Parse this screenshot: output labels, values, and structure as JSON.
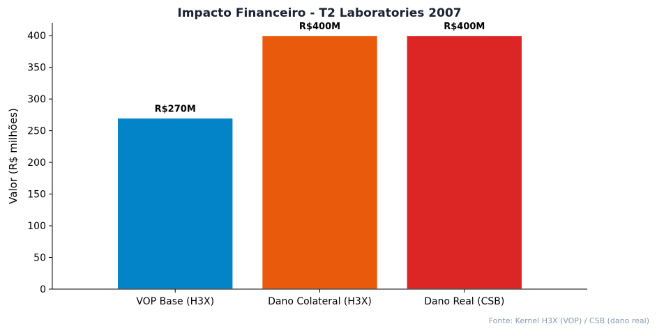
{
  "chart_data": {
    "type": "bar",
    "title": "Impacto Financeiro - T2 Laboratories 2007",
    "xlabel": "",
    "ylabel": "Valor (R$ milhões)",
    "categories": [
      "VOP Base (H3X)",
      "Dano Colateral (H3X)",
      "Dano Real (CSB)"
    ],
    "values": [
      270,
      400,
      400
    ],
    "data_labels": [
      "R$270M",
      "R$400M",
      "R$400M"
    ],
    "colors": [
      "#0384c8",
      "#e95a0c",
      "#dc2626"
    ],
    "ylim": [
      0,
      420
    ],
    "yticks": [
      0,
      50,
      100,
      150,
      200,
      250,
      300,
      350,
      400
    ],
    "ytick_labels": [
      "0",
      "50",
      "100",
      "150",
      "200",
      "250",
      "300",
      "350",
      "400"
    ],
    "grid": false,
    "legend": "none"
  },
  "source_note": "Fonte: Kernel H3X (VOP) / CSB (dano real)"
}
